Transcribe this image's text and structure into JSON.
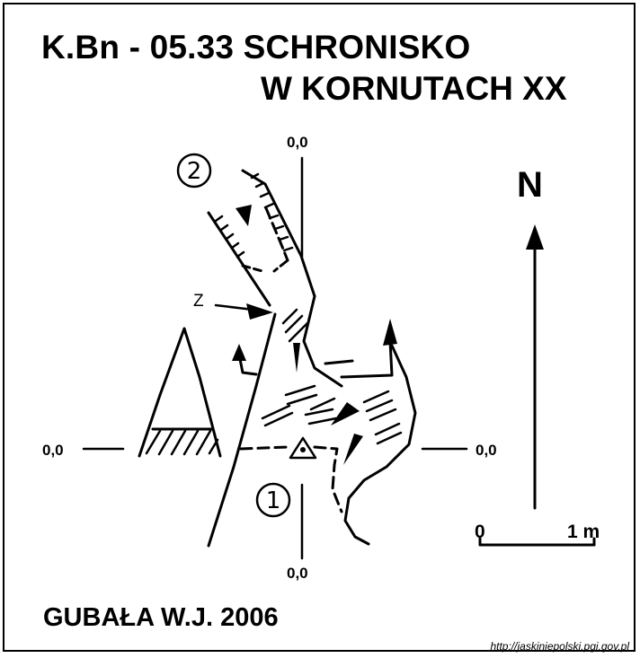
{
  "title": {
    "line1": "K.Bn - 05.33  SCHRONISKO",
    "line2": "W KORNUTACH XX"
  },
  "author": "GUBAŁA W.J. 2006",
  "north_label": "N",
  "reference_labels": [
    "0,0",
    "0,0",
    "0,0",
    "0,0"
  ],
  "entrance_marker": "Z",
  "entrance_numbers": [
    "2",
    "1"
  ],
  "scale": {
    "start": "0",
    "end": "1 m"
  },
  "source_url": "http://jaskiniepolski.pgi.gov.pl",
  "colors": {
    "ink": "#000000",
    "background": "#ffffff"
  }
}
